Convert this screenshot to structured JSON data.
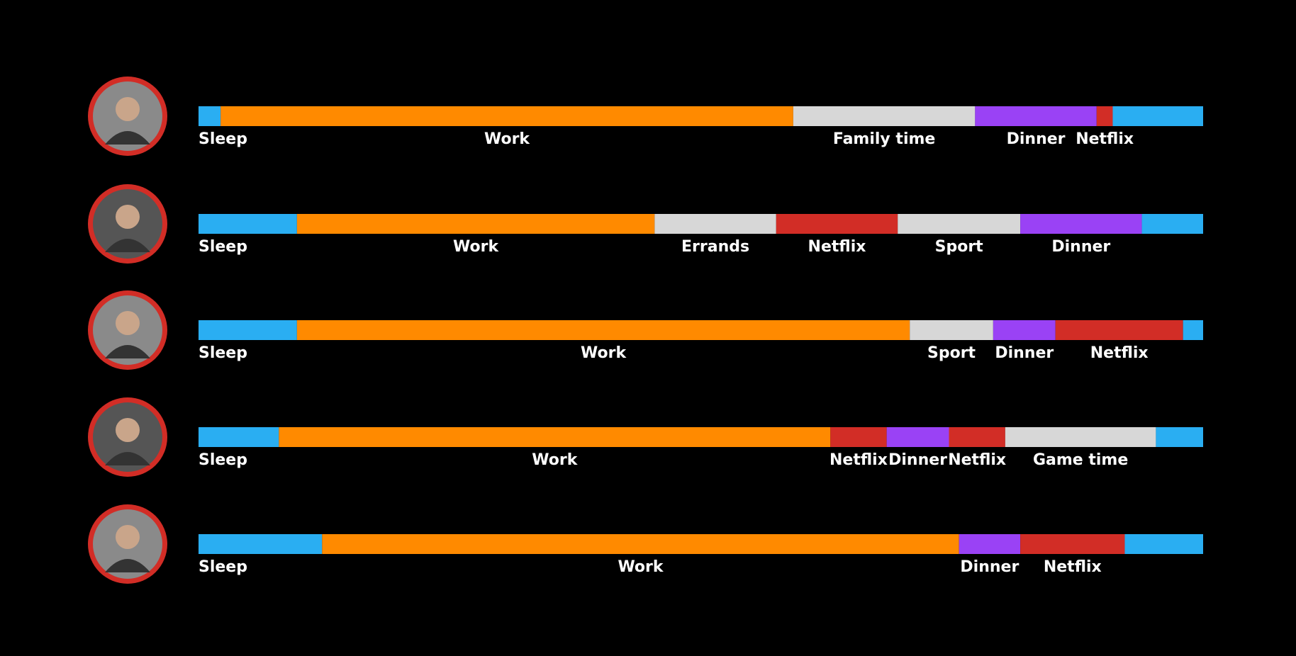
{
  "chart_data": {
    "type": "timeline",
    "xlim": [
      0,
      100
    ],
    "rows": [
      {
        "segments": [
          {
            "label": "Sleep",
            "value": 2.2,
            "color": "#2aaef2"
          },
          {
            "label": "Work",
            "value": 57.0,
            "color": "#ff8a00"
          },
          {
            "label": "Family time",
            "value": 18.1,
            "color": "#d7d7d7"
          },
          {
            "label": "Dinner",
            "value": 12.1,
            "color": "#9a42f5"
          },
          {
            "label": "Netflix",
            "value": 1.6,
            "color": "#d22d26"
          },
          {
            "label": null,
            "value": 9.0,
            "color": "#2aaef2"
          }
        ]
      },
      {
        "segments": [
          {
            "label": "Sleep",
            "value": 9.8,
            "color": "#2aaef2"
          },
          {
            "label": "Work",
            "value": 35.6,
            "color": "#ff8a00"
          },
          {
            "label": "Errands",
            "value": 12.1,
            "color": "#d7d7d7"
          },
          {
            "label": "Netflix",
            "value": 12.1,
            "color": "#d22d26"
          },
          {
            "label": "Sport",
            "value": 12.2,
            "color": "#d7d7d7"
          },
          {
            "label": "Dinner",
            "value": 12.1,
            "color": "#9a42f5"
          },
          {
            "label": null,
            "value": 6.1,
            "color": "#2aaef2"
          }
        ]
      },
      {
        "segments": [
          {
            "label": "Sleep",
            "value": 9.8,
            "color": "#2aaef2"
          },
          {
            "label": "Work",
            "value": 61.0,
            "color": "#ff8a00"
          },
          {
            "label": "Sport",
            "value": 8.3,
            "color": "#d7d7d7"
          },
          {
            "label": "Dinner",
            "value": 6.2,
            "color": "#9a42f5"
          },
          {
            "label": "Netflix",
            "value": 12.7,
            "color": "#d22d26"
          },
          {
            "label": null,
            "value": 2.0,
            "color": "#2aaef2"
          }
        ]
      },
      {
        "segments": [
          {
            "label": "Sleep",
            "value": 8.0,
            "color": "#2aaef2"
          },
          {
            "label": "Work",
            "value": 54.9,
            "color": "#ff8a00"
          },
          {
            "label": "Netflix",
            "value": 5.6,
            "color": "#d22d26"
          },
          {
            "label": "Dinner",
            "value": 6.2,
            "color": "#9a42f5"
          },
          {
            "label": "Netflix",
            "value": 5.6,
            "color": "#d22d26"
          },
          {
            "label": "Game time",
            "value": 15.0,
            "color": "#d7d7d7"
          },
          {
            "label": null,
            "value": 4.7,
            "color": "#2aaef2"
          }
        ]
      },
      {
        "segments": [
          {
            "label": "Sleep",
            "value": 12.3,
            "color": "#2aaef2"
          },
          {
            "label": "Work",
            "value": 63.4,
            "color": "#ff8a00"
          },
          {
            "label": "Dinner",
            "value": 6.1,
            "color": "#9a42f5"
          },
          {
            "label": "Netflix",
            "value": 10.4,
            "color": "#d22d26"
          },
          {
            "label": null,
            "value": 7.8,
            "color": "#2aaef2"
          }
        ]
      }
    ]
  }
}
